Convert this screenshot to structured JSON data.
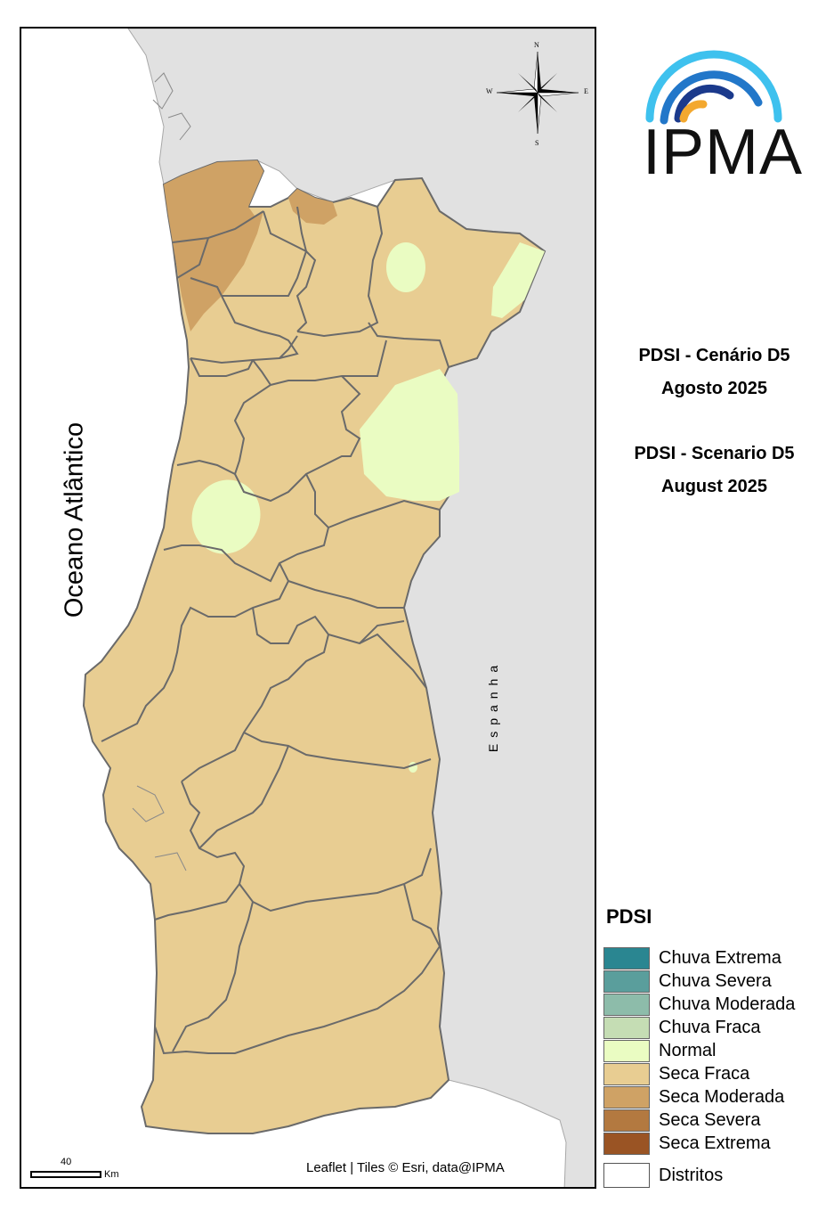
{
  "map": {
    "ocean_label": "Oceano Atlântico",
    "country_label": "Espanha",
    "attribution": "Leaflet | Tiles © Esri, data@IPMA",
    "scale_value": "40",
    "scale_unit": "Km",
    "compass": {
      "north": "N",
      "south": "S",
      "east": "E",
      "west": "W"
    }
  },
  "logo": {
    "text": "IPMA"
  },
  "title": {
    "pt_line1": "PDSI - Cenário D5",
    "pt_line2": "Agosto 2025",
    "en_line1": "PDSI - Scenario D5",
    "en_line2": "August 2025"
  },
  "legend": {
    "title": "PDSI",
    "items": [
      {
        "label": "Chuva Extrema",
        "color": "#2a8691"
      },
      {
        "label": "Chuva Severa",
        "color": "#5a9e9c"
      },
      {
        "label": "Chuva Moderada",
        "color": "#8dbcaa"
      },
      {
        "label": "Chuva Fraca",
        "color": "#c5ddb4"
      },
      {
        "label": "Normal",
        "color": "#eafcc2"
      },
      {
        "label": "Seca Fraca",
        "color": "#e8cd92"
      },
      {
        "label": "Seca Moderada",
        "color": "#cfa265"
      },
      {
        "label": "Seca Severa",
        "color": "#b37940"
      },
      {
        "label": "Seca Extrema",
        "color": "#9a5424"
      }
    ],
    "districts_label": "Distritos"
  },
  "colors": {
    "land_background": "#e1e1e1",
    "seca_fraca": "#e8cd92",
    "seca_moderada": "#cfa265",
    "normal": "#eafcc2",
    "district_border": "#6a6a6a"
  }
}
